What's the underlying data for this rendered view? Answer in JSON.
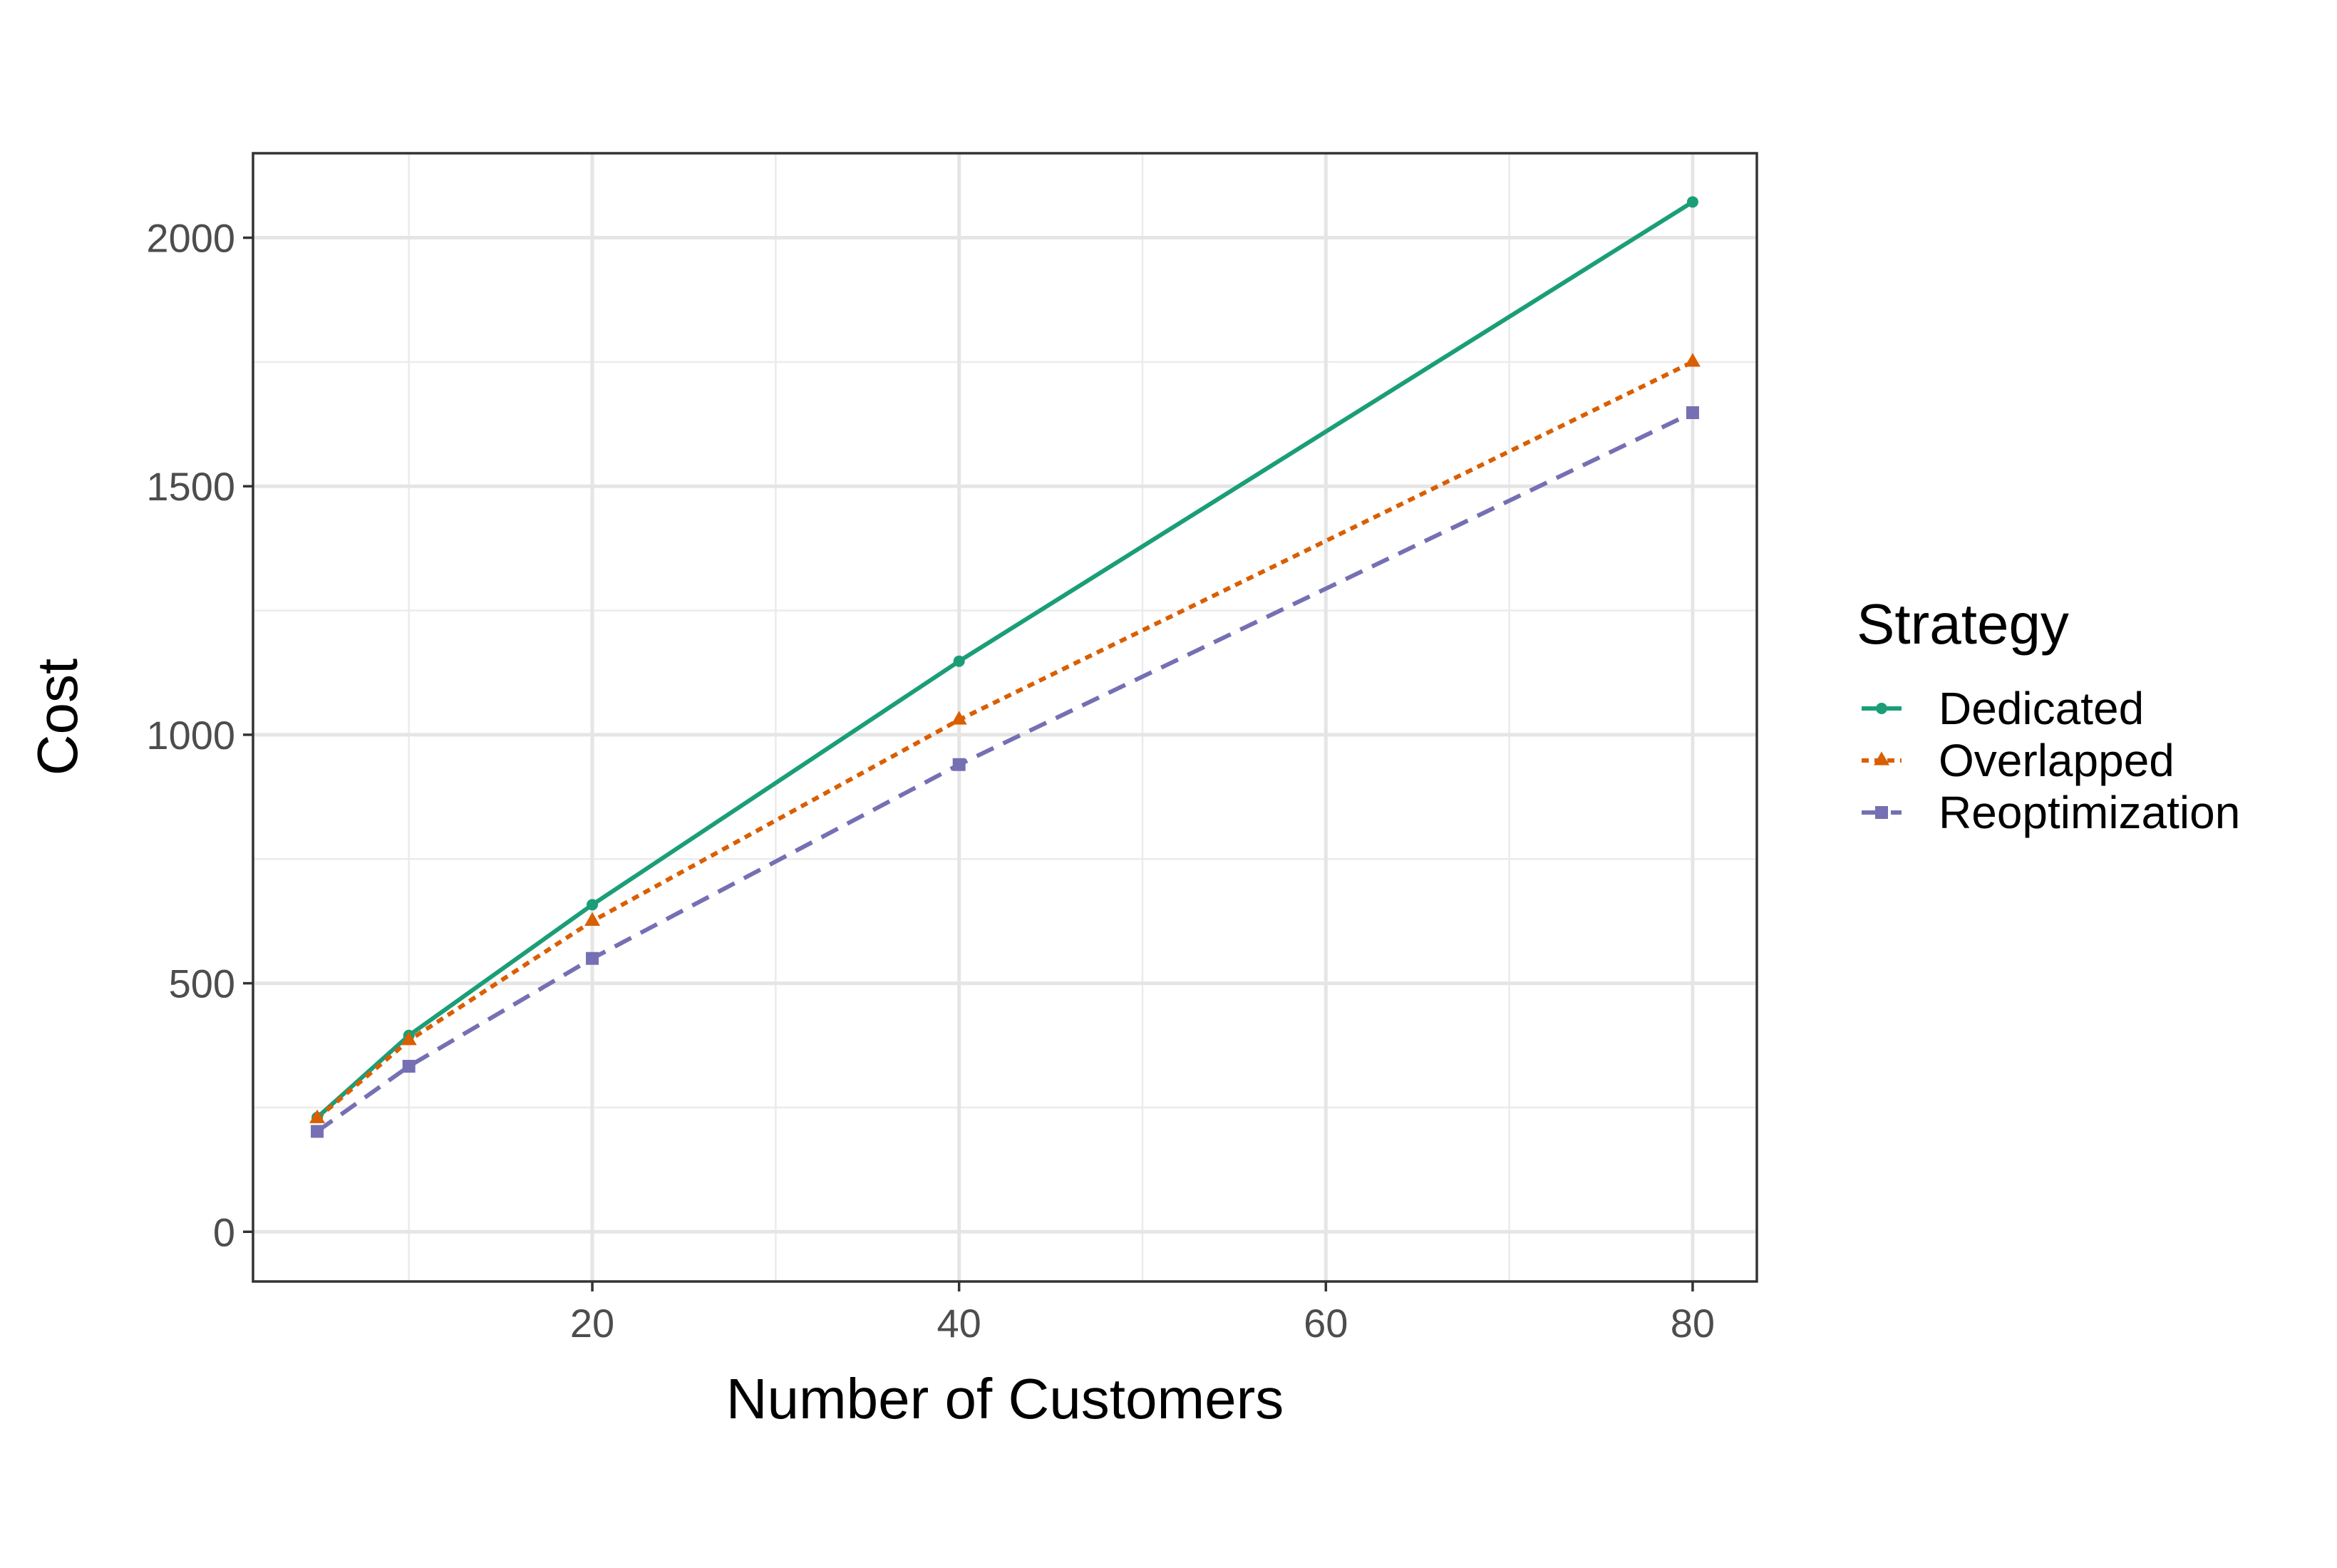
{
  "chart_data": {
    "type": "line",
    "xlabel": "Number of Customers",
    "ylabel": "Cost",
    "xlim": [
      1.5,
      83.5
    ],
    "ylim": [
      -100,
      2170
    ],
    "x_ticks": [
      20,
      40,
      60,
      80
    ],
    "x_minor_ticks": [
      10,
      30,
      50,
      70
    ],
    "y_ticks": [
      0,
      500,
      1000,
      1500,
      2000
    ],
    "y_minor_ticks": [
      250,
      750,
      1250,
      1750
    ],
    "grid": true,
    "legend": {
      "title": "Strategy",
      "position": "right"
    },
    "series": [
      {
        "name": "Dedicated",
        "color": "#1b9e77",
        "line_style": "solid",
        "marker": "circle",
        "x": [
          5,
          10,
          20,
          40,
          80
        ],
        "values": [
          230,
          395,
          658,
          1148,
          2072
        ]
      },
      {
        "name": "Overlapped",
        "color": "#d95f02",
        "line_style": "dotted",
        "marker": "triangle",
        "x": [
          5,
          10,
          20,
          40,
          80
        ],
        "values": [
          228,
          385,
          625,
          1030,
          1750
        ]
      },
      {
        "name": "Reoptimization",
        "color": "#7570b3",
        "line_style": "dashed",
        "marker": "square",
        "x": [
          5,
          10,
          20,
          40,
          80
        ],
        "values": [
          202,
          333,
          550,
          940,
          1648
        ]
      }
    ]
  }
}
